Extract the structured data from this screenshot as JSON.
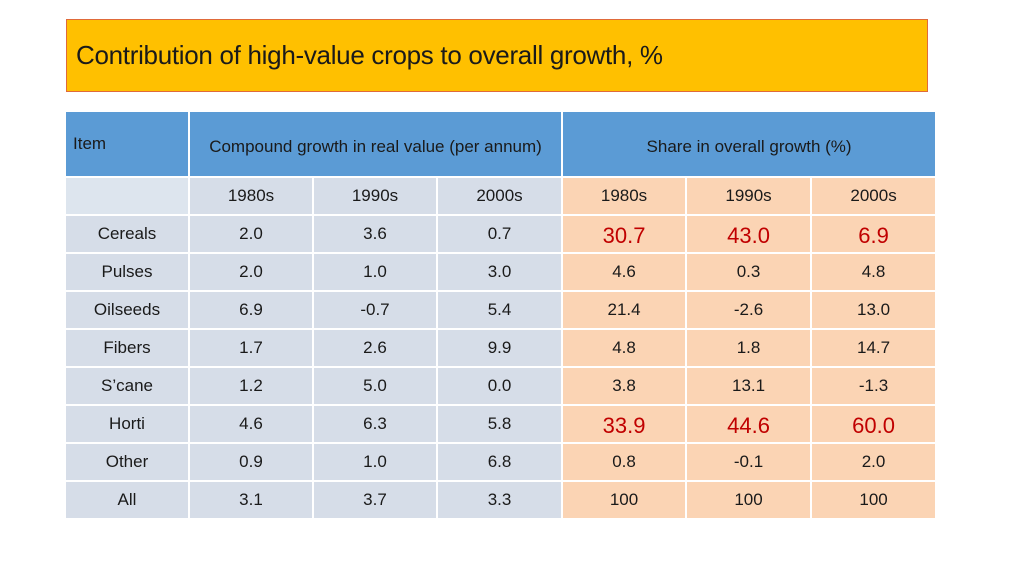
{
  "title": "Contribution of high-value crops to overall growth, %",
  "header": {
    "item": "Item",
    "growth": "Compound growth in real value (per annum)",
    "share": "Share in overall growth (%)"
  },
  "decades": [
    "1980s",
    "1990s",
    "2000s",
    "1980s",
    "1990s",
    "2000s"
  ],
  "rows": [
    {
      "item": "Cereals",
      "growth": [
        "2.0",
        "3.6",
        "0.7"
      ],
      "share": [
        "30.7",
        "43.0",
        "6.9"
      ]
    },
    {
      "item": "Pulses",
      "growth": [
        "2.0",
        "1.0",
        "3.0"
      ],
      "share": [
        "4.6",
        "0.3",
        "4.8"
      ]
    },
    {
      "item": "Oilseeds",
      "growth": [
        "6.9",
        "-0.7",
        "5.4"
      ],
      "share": [
        "21.4",
        "-2.6",
        "13.0"
      ]
    },
    {
      "item": "Fibers",
      "growth": [
        "1.7",
        "2.6",
        "9.9"
      ],
      "share": [
        "4.8",
        "1.8",
        "14.7"
      ]
    },
    {
      "item": "S’cane",
      "growth": [
        "1.2",
        "5.0",
        "0.0"
      ],
      "share": [
        "3.8",
        "13.1",
        "-1.3"
      ]
    },
    {
      "item": "Horti",
      "growth": [
        "4.6",
        "6.3",
        "5.8"
      ],
      "share": [
        "33.9",
        "44.6",
        "60.0"
      ]
    },
    {
      "item": "Other",
      "growth": [
        "0.9",
        "1.0",
        "6.8"
      ],
      "share": [
        "0.8",
        "-0.1",
        "2.0"
      ]
    },
    {
      "item": "All",
      "growth": [
        "3.1",
        "3.7",
        "3.3"
      ],
      "share": [
        "100",
        "100",
        "100"
      ]
    }
  ],
  "colors": {
    "title_bg": "#ffc000",
    "header_bg": "#5b9bd5",
    "cell_blue": "#d6dde8",
    "cell_peach": "#fbd4b4",
    "highlight_text": "#c00000"
  }
}
